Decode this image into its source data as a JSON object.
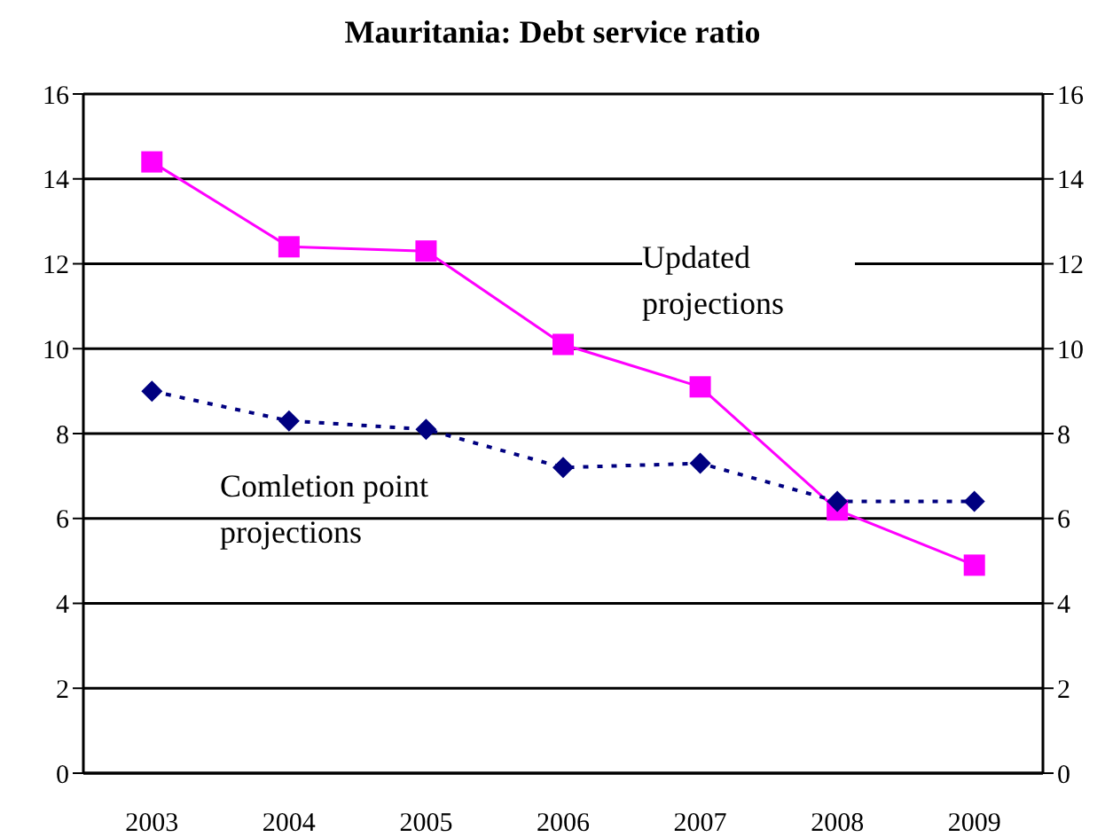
{
  "chart_data": {
    "type": "line",
    "title": "Mauritania: Debt service ratio",
    "categories": [
      "2003",
      "2004",
      "2005",
      "2006",
      "2007",
      "2008",
      "2009"
    ],
    "series": [
      {
        "name": "Updated projections",
        "color": "#ff00ff",
        "values": [
          14.4,
          12.4,
          12.3,
          10.1,
          9.1,
          6.2,
          4.9
        ],
        "marker": "square",
        "line_style": "solid"
      },
      {
        "name": "Comletion point projections",
        "color": "#000080",
        "values": [
          9.0,
          8.3,
          8.1,
          7.2,
          7.3,
          6.4,
          6.4
        ],
        "marker": "diamond",
        "line_style": "dotted"
      }
    ],
    "ylim": [
      0,
      16
    ],
    "yticks": [
      0,
      2,
      4,
      6,
      8,
      10,
      12,
      14,
      16
    ],
    "y2lim": [
      0,
      16
    ],
    "y2ticks": [
      0,
      2,
      4,
      6,
      8,
      10,
      12,
      14,
      16
    ],
    "grid": "y",
    "legend": false
  }
}
